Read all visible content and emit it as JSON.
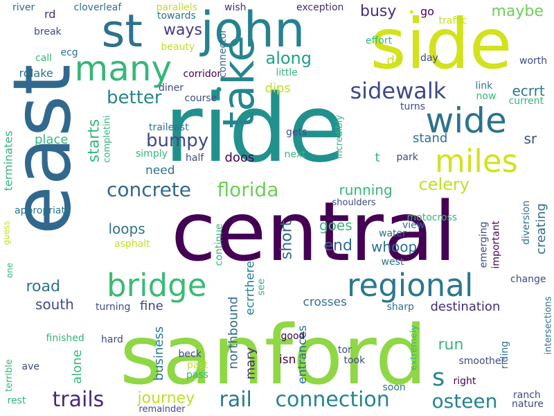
{
  "words": [
    {
      "text": "sanford",
      "color": "#8fd744"
    },
    {
      "text": "central",
      "color": "#440154"
    },
    {
      "text": "ride",
      "color": "#21918c"
    },
    {
      "text": "east",
      "color": "#31688e"
    },
    {
      "text": "side",
      "color": "#d2e21b"
    },
    {
      "text": "st",
      "color": "#2c728e"
    },
    {
      "text": "john",
      "color": "#26828e"
    },
    {
      "text": "many",
      "color": "#35b779"
    },
    {
      "text": "take",
      "color": "#25858e"
    },
    {
      "text": "wide",
      "color": "#2c728e"
    },
    {
      "text": "miles",
      "color": "#d2e21b"
    },
    {
      "text": "bridge",
      "color": "#3bbb75"
    },
    {
      "text": "regional",
      "color": "#2a788e"
    },
    {
      "text": "sidewalk",
      "color": "#3e4989"
    },
    {
      "text": "florida",
      "color": "#6ece58"
    },
    {
      "text": "concrete",
      "color": "#31688e"
    },
    {
      "text": "trails",
      "color": "#482878"
    },
    {
      "text": "rail",
      "color": "#2a788e"
    },
    {
      "text": "connection",
      "color": "#25858e"
    },
    {
      "text": "osteen",
      "color": "#25838e"
    },
    {
      "text": "journey",
      "color": "#bddf26"
    },
    {
      "text": "along",
      "color": "#1fa187"
    },
    {
      "text": "better",
      "color": "#25858e"
    },
    {
      "text": "bumpy",
      "color": "#3e4989"
    },
    {
      "text": "starts",
      "color": "#35b779"
    },
    {
      "text": "celery",
      "color": "#c2df23"
    },
    {
      "text": "running",
      "color": "#35b779"
    },
    {
      "text": "busy",
      "color": "#472d7b"
    },
    {
      "text": "maybe",
      "color": "#6ece58"
    },
    {
      "text": "ways",
      "color": "#443983"
    },
    {
      "text": "road",
      "color": "#2c728e"
    },
    {
      "text": "south",
      "color": "#3e4989"
    },
    {
      "text": "short",
      "color": "#31688e"
    },
    {
      "text": "end",
      "color": "#31688e"
    },
    {
      "text": "goes",
      "color": "#35b779"
    },
    {
      "text": "whoop",
      "color": "#2c728e"
    },
    {
      "text": "loops",
      "color": "#2c728e"
    },
    {
      "text": "run",
      "color": "#35b779"
    },
    {
      "text": "s",
      "color": "#24868e"
    },
    {
      "text": "ecrrt",
      "color": "#2a788e"
    },
    {
      "text": "sr",
      "color": "#3b528b"
    },
    {
      "text": "stand",
      "color": "#2c728e"
    },
    {
      "text": "doos",
      "color": "#440154"
    },
    {
      "text": "need",
      "color": "#2c728e"
    },
    {
      "text": "place",
      "color": "#35b779"
    },
    {
      "text": "de",
      "color": "#c8e020"
    },
    {
      "text": "dips",
      "color": "#c2df23"
    },
    {
      "text": "fine",
      "color": "#3e4989"
    },
    {
      "text": "crosses",
      "color": "#2c728e"
    },
    {
      "text": "destination",
      "color": "#472d7b"
    },
    {
      "text": "creating",
      "color": "#31688e"
    },
    {
      "text": "mary",
      "color": "#482878"
    },
    {
      "text": "northbound",
      "color": "#31688e"
    },
    {
      "text": "business",
      "color": "#2a788e"
    },
    {
      "text": "alone",
      "color": "#35b779"
    },
    {
      "text": "entrances",
      "color": "#2c728e"
    },
    {
      "text": "isn",
      "color": "#440154"
    },
    {
      "text": "ecrrthere",
      "color": "#26828e"
    },
    {
      "text": "terminates",
      "color": "#35b779"
    },
    {
      "text": "rdlake",
      "color": "#2c728e"
    },
    {
      "text": "rd",
      "color": "#472d7b"
    },
    {
      "text": "river",
      "color": "#31688e"
    },
    {
      "text": "cloverleaf",
      "color": "#2c728e"
    },
    {
      "text": "parallels",
      "color": "#c2df23"
    },
    {
      "text": "towards",
      "color": "#2c728e"
    },
    {
      "text": "connector",
      "color": "#31688e"
    },
    {
      "text": "wish",
      "color": "#472d7b"
    },
    {
      "text": "exception",
      "color": "#472d7b"
    },
    {
      "text": "go",
      "color": "#440154"
    },
    {
      "text": "traffic",
      "color": "#c2df23"
    },
    {
      "text": "effort",
      "color": "#35b779"
    },
    {
      "text": "day",
      "color": "#3e4989"
    },
    {
      "text": "worth",
      "color": "#3e4989"
    },
    {
      "text": "little",
      "color": "#35b779"
    },
    {
      "text": "corridor",
      "color": "#440154"
    },
    {
      "text": "diner",
      "color": "#3e4989"
    },
    {
      "text": "course",
      "color": "#3e4989"
    },
    {
      "text": "beauty",
      "color": "#c2df23"
    },
    {
      "text": "break",
      "color": "#3e4989"
    },
    {
      "text": "ecg",
      "color": "#2c728e"
    },
    {
      "text": "call",
      "color": "#35b779"
    },
    {
      "text": "link",
      "color": "#2a788e"
    },
    {
      "text": "now",
      "color": "#35b779"
    },
    {
      "text": "current",
      "color": "#35b779"
    },
    {
      "text": "turns",
      "color": "#3e4989"
    },
    {
      "text": "traileast",
      "color": "#2c728e"
    },
    {
      "text": "completini",
      "color": "#35b779"
    },
    {
      "text": "simply",
      "color": "#35b779"
    },
    {
      "text": "gets",
      "color": "#3e4989"
    },
    {
      "text": "next",
      "color": "#35b779"
    },
    {
      "text": "half",
      "color": "#3e4989"
    },
    {
      "text": "incredibly",
      "color": "#35b779"
    },
    {
      "text": "t",
      "color": "#35b779"
    },
    {
      "text": "park",
      "color": "#3e4989"
    },
    {
      "text": "shoulders",
      "color": "#3e4989"
    },
    {
      "text": "motocross",
      "color": "#35b779"
    },
    {
      "text": "appropriate",
      "color": "#2c728e"
    },
    {
      "text": "guess",
      "color": "#c2df23"
    },
    {
      "text": "one",
      "color": "#35b779"
    },
    {
      "text": "asphalt",
      "color": "#c2df23"
    },
    {
      "text": "continue",
      "color": "#35b779"
    },
    {
      "text": "water",
      "color": "#2c728e"
    },
    {
      "text": "view",
      "color": "#2c728e"
    },
    {
      "text": "west",
      "color": "#2c728e"
    },
    {
      "text": "emerging",
      "color": "#3e4989"
    },
    {
      "text": "important",
      "color": "#440154"
    },
    {
      "text": "diversion",
      "color": "#2c728e"
    },
    {
      "text": "change",
      "color": "#3e4989"
    },
    {
      "text": "see",
      "color": "#35b779"
    },
    {
      "text": "turning",
      "color": "#3e4989"
    },
    {
      "text": "sharp",
      "color": "#2c728e"
    },
    {
      "text": "intersections",
      "color": "#2c728e"
    },
    {
      "text": "finished",
      "color": "#35b779"
    },
    {
      "text": "hard",
      "color": "#3e4989"
    },
    {
      "text": "good",
      "color": "#440154"
    },
    {
      "text": "extremely",
      "color": "#35b779"
    },
    {
      "text": "riding",
      "color": "#2c728e"
    },
    {
      "text": "beck",
      "color": "#3e4989"
    },
    {
      "text": "tor",
      "color": "#3e4989"
    },
    {
      "text": "took",
      "color": "#3e4989"
    },
    {
      "text": "smoother",
      "color": "#3e4989"
    },
    {
      "text": "past",
      "color": "#c2df23"
    },
    {
      "text": "pass",
      "color": "#35b779"
    },
    {
      "text": "soon",
      "color": "#2c728e"
    },
    {
      "text": "right",
      "color": "#440154"
    },
    {
      "text": "ranch",
      "color": "#3e4989"
    },
    {
      "text": "nature",
      "color": "#3e4989"
    },
    {
      "text": "terrible",
      "color": "#35b779"
    },
    {
      "text": "ave",
      "color": "#3e4989"
    },
    {
      "text": "rest",
      "color": "#35b779"
    },
    {
      "text": "remainder",
      "color": "#3e4989"
    },
    {
      "text": "•",
      "color": "#d2e21b"
    },
    {
      "text": "•",
      "color": "#21918c"
    }
  ]
}
